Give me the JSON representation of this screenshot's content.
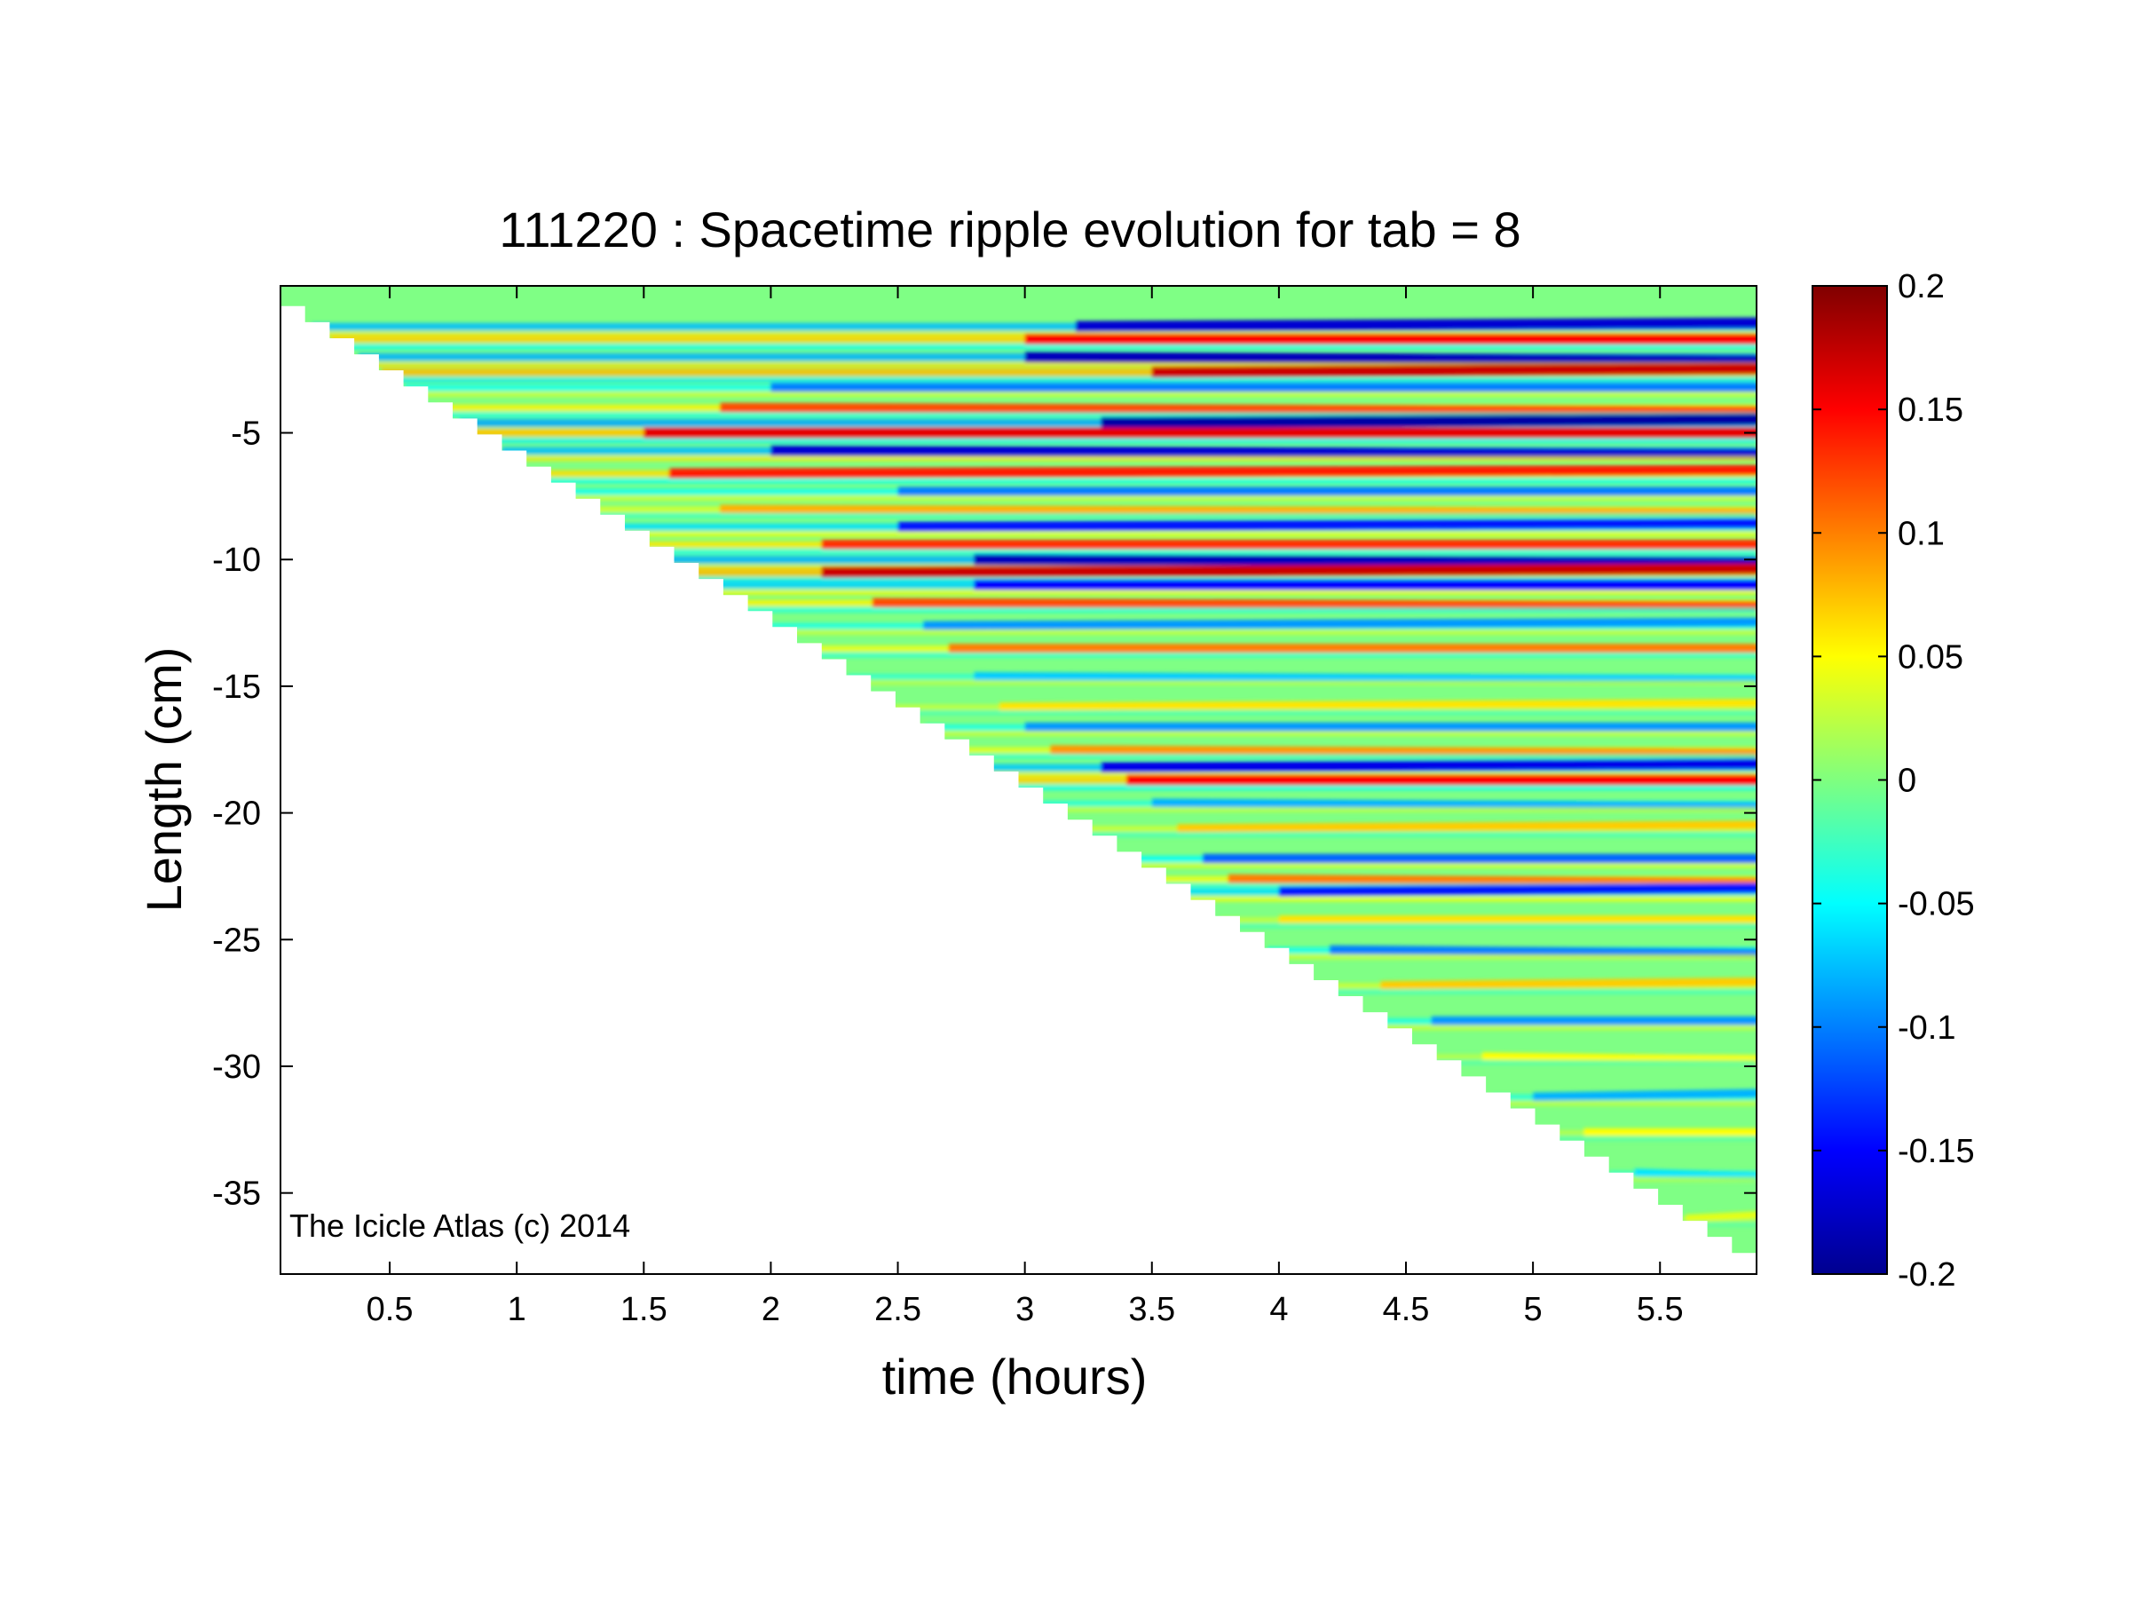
{
  "figure": {
    "title": "111220 : Spacetime ripple evolution for tab = 8",
    "watermark": "The Icicle Atlas (c) 2014"
  },
  "chart_data": {
    "type": "heatmap",
    "title": "111220 : Spacetime ripple evolution for tab = 8",
    "xlabel": "time (hours)",
    "ylabel": "Length (cm)",
    "xlim": [
      0.07,
      5.88
    ],
    "ylim": [
      -38.2,
      0.8
    ],
    "x_ticks": [
      0.5,
      1,
      1.5,
      2,
      2.5,
      3,
      3.5,
      4,
      4.5,
      5,
      5.5
    ],
    "x_tick_labels": [
      "0.5",
      "1",
      "1.5",
      "2",
      "2.5",
      "3",
      "3.5",
      "4",
      "4.5",
      "5",
      "5.5"
    ],
    "y_ticks": [
      -5,
      -10,
      -15,
      -20,
      -25,
      -30,
      -35
    ],
    "y_tick_labels": [
      "-5",
      "-10",
      "-15",
      "-20",
      "-25",
      "-30",
      "-35"
    ],
    "colormap": "jet",
    "colorbar": {
      "range": [
        -0.2,
        0.2
      ],
      "ticks": [
        0.2,
        0.15,
        0.1,
        0.05,
        0,
        -0.05,
        -0.1,
        -0.15,
        -0.2
      ],
      "tick_labels": [
        "0.2",
        "0.15",
        "0.1",
        "0.05",
        "0",
        "-0.05",
        "-0.1",
        "-0.15",
        "-0.2"
      ]
    },
    "data_region_edge": {
      "description_points": [
        [
          0.07,
          0.0
        ],
        [
          5.88,
          -38.0
        ]
      ]
    },
    "ripple_bands": [
      {
        "y": -0.8,
        "value": -0.17,
        "start": 3.2
      },
      {
        "y": -1.3,
        "value": 0.15,
        "start": 3.0
      },
      {
        "y": -2.0,
        "value": -0.18,
        "start": 3.0
      },
      {
        "y": -2.6,
        "value": 0.17,
        "start": 3.5
      },
      {
        "y": -3.2,
        "value": -0.1,
        "start": 2.0
      },
      {
        "y": -4.0,
        "value": 0.12,
        "start": 1.8
      },
      {
        "y": -4.6,
        "value": -0.19,
        "start": 3.3
      },
      {
        "y": -5.0,
        "value": 0.16,
        "start": 1.5
      },
      {
        "y": -5.7,
        "value": -0.17,
        "start": 2.0
      },
      {
        "y": -6.6,
        "value": 0.14,
        "start": 1.6
      },
      {
        "y": -7.3,
        "value": -0.1,
        "start": 2.5
      },
      {
        "y": -8.0,
        "value": 0.08,
        "start": 1.8
      },
      {
        "y": -8.7,
        "value": -0.14,
        "start": 2.5
      },
      {
        "y": -9.4,
        "value": 0.13,
        "start": 2.2
      },
      {
        "y": -10.0,
        "value": -0.18,
        "start": 2.8
      },
      {
        "y": -10.5,
        "value": 0.17,
        "start": 2.2
      },
      {
        "y": -11.0,
        "value": -0.15,
        "start": 2.8
      },
      {
        "y": -11.7,
        "value": 0.12,
        "start": 2.4
      },
      {
        "y": -12.6,
        "value": -0.09,
        "start": 2.6
      },
      {
        "y": -13.5,
        "value": 0.1,
        "start": 2.7
      },
      {
        "y": -14.6,
        "value": -0.07,
        "start": 2.8
      },
      {
        "y": -15.8,
        "value": 0.06,
        "start": 2.9
      },
      {
        "y": -16.6,
        "value": -0.09,
        "start": 3.0
      },
      {
        "y": -17.5,
        "value": 0.09,
        "start": 3.1
      },
      {
        "y": -18.2,
        "value": -0.16,
        "start": 3.3
      },
      {
        "y": -18.7,
        "value": 0.15,
        "start": 3.4
      },
      {
        "y": -19.6,
        "value": -0.08,
        "start": 3.5
      },
      {
        "y": -20.6,
        "value": 0.07,
        "start": 3.6
      },
      {
        "y": -21.8,
        "value": -0.11,
        "start": 3.7
      },
      {
        "y": -22.6,
        "value": 0.1,
        "start": 3.8
      },
      {
        "y": -23.1,
        "value": -0.14,
        "start": 4.0
      },
      {
        "y": -24.2,
        "value": 0.06,
        "start": 4.0
      },
      {
        "y": -25.4,
        "value": -0.1,
        "start": 4.2
      },
      {
        "y": -26.8,
        "value": 0.07,
        "start": 4.4
      },
      {
        "y": -28.2,
        "value": -0.09,
        "start": 4.6
      },
      {
        "y": -29.6,
        "value": 0.05,
        "start": 4.8
      },
      {
        "y": -31.2,
        "value": -0.08,
        "start": 5.0
      },
      {
        "y": -32.6,
        "value": 0.05,
        "start": 5.2
      },
      {
        "y": -34.2,
        "value": -0.06,
        "start": 5.4
      },
      {
        "y": -36.0,
        "value": 0.04,
        "start": 5.6
      }
    ]
  }
}
